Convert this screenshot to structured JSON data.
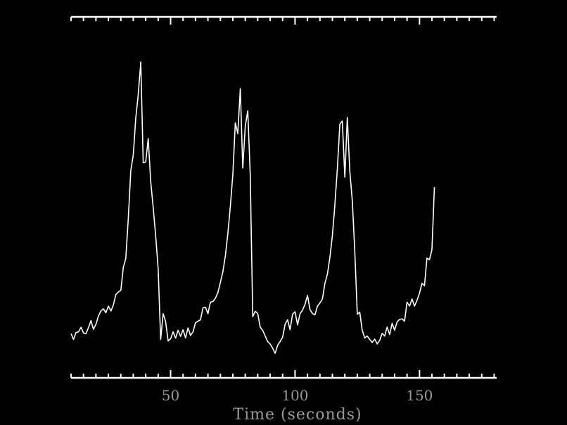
{
  "colors": {
    "background": "#000000",
    "line": "#ffffff",
    "axis": "#ffffff",
    "label": "#9a9a9a"
  },
  "chart_data": {
    "type": "line",
    "title": "",
    "xlabel": "Time (seconds)",
    "ylabel": "",
    "xlim": [
      10,
      181
    ],
    "ylim": [
      0,
      1
    ],
    "x_ticks": [
      50,
      100,
      150
    ],
    "x_tick_labels": [
      "50",
      "100",
      "150"
    ],
    "x_minor_step": 5,
    "grid": false,
    "legend": "none",
    "series": [
      {
        "color": "#ffffff",
        "points": [
          [
            10,
            0.104
          ],
          [
            11,
            0.085
          ],
          [
            12,
            0.108
          ],
          [
            13,
            0.11
          ],
          [
            14,
            0.125
          ],
          [
            15,
            0.106
          ],
          [
            16,
            0.104
          ],
          [
            17,
            0.124
          ],
          [
            18,
            0.147
          ],
          [
            19,
            0.118
          ],
          [
            20,
            0.135
          ],
          [
            21,
            0.162
          ],
          [
            22,
            0.179
          ],
          [
            23,
            0.186
          ],
          [
            24,
            0.173
          ],
          [
            25,
            0.195
          ],
          [
            26,
            0.179
          ],
          [
            27,
            0.198
          ],
          [
            28,
            0.233
          ],
          [
            29,
            0.241
          ],
          [
            30,
            0.247
          ],
          [
            31,
            0.323
          ],
          [
            32,
            0.352
          ],
          [
            33,
            0.485
          ],
          [
            34,
            0.641
          ],
          [
            35,
            0.694
          ],
          [
            36,
            0.815
          ],
          [
            37,
            0.892
          ],
          [
            38,
            1.0
          ],
          [
            39,
            0.667
          ],
          [
            40,
            0.67
          ],
          [
            41,
            0.747
          ],
          [
            42,
            0.607
          ],
          [
            43,
            0.519
          ],
          [
            44,
            0.427
          ],
          [
            45,
            0.319
          ],
          [
            46,
            0.085
          ],
          [
            47,
            0.17
          ],
          [
            48,
            0.144
          ],
          [
            49,
            0.08
          ],
          [
            50,
            0.087
          ],
          [
            51,
            0.11
          ],
          [
            52,
            0.089
          ],
          [
            53,
            0.115
          ],
          [
            54,
            0.095
          ],
          [
            55,
            0.117
          ],
          [
            56,
            0.09
          ],
          [
            57,
            0.123
          ],
          [
            58,
            0.098
          ],
          [
            59,
            0.11
          ],
          [
            60,
            0.14
          ],
          [
            61,
            0.145
          ],
          [
            62,
            0.15
          ],
          [
            63,
            0.189
          ],
          [
            64,
            0.191
          ],
          [
            65,
            0.17
          ],
          [
            66,
            0.208
          ],
          [
            67,
            0.21
          ],
          [
            68,
            0.221
          ],
          [
            69,
            0.239
          ],
          [
            70,
            0.273
          ],
          [
            71,
            0.308
          ],
          [
            72,
            0.361
          ],
          [
            73,
            0.434
          ],
          [
            74,
            0.522
          ],
          [
            75,
            0.629
          ],
          [
            76,
            0.799
          ],
          [
            77,
            0.763
          ],
          [
            78,
            0.912
          ],
          [
            79,
            0.65
          ],
          [
            80,
            0.789
          ],
          [
            81,
            0.839
          ],
          [
            82,
            0.629
          ],
          [
            83,
            0.16
          ],
          [
            84,
            0.178
          ],
          [
            85,
            0.17
          ],
          [
            86,
            0.125
          ],
          [
            87,
            0.115
          ],
          [
            88,
            0.096
          ],
          [
            89,
            0.078
          ],
          [
            90,
            0.07
          ],
          [
            91,
            0.056
          ],
          [
            92,
            0.039
          ],
          [
            93,
            0.066
          ],
          [
            94,
            0.078
          ],
          [
            95,
            0.092
          ],
          [
            96,
            0.135
          ],
          [
            97,
            0.15
          ],
          [
            98,
            0.117
          ],
          [
            99,
            0.168
          ],
          [
            100,
            0.176
          ],
          [
            101,
            0.133
          ],
          [
            102,
            0.17
          ],
          [
            103,
            0.181
          ],
          [
            104,
            0.201
          ],
          [
            105,
            0.23
          ],
          [
            106,
            0.184
          ],
          [
            107,
            0.17
          ],
          [
            108,
            0.166
          ],
          [
            109,
            0.195
          ],
          [
            110,
            0.205
          ],
          [
            111,
            0.218
          ],
          [
            112,
            0.27
          ],
          [
            113,
            0.3
          ],
          [
            114,
            0.356
          ],
          [
            115,
            0.428
          ],
          [
            116,
            0.528
          ],
          [
            117,
            0.65
          ],
          [
            118,
            0.795
          ],
          [
            119,
            0.805
          ],
          [
            120,
            0.62
          ],
          [
            121,
            0.817
          ],
          [
            122,
            0.638
          ],
          [
            123,
            0.543
          ],
          [
            124,
            0.378
          ],
          [
            125,
            0.168
          ],
          [
            126,
            0.175
          ],
          [
            127,
            0.115
          ],
          [
            128,
            0.09
          ],
          [
            129,
            0.096
          ],
          [
            130,
            0.085
          ],
          [
            131,
            0.075
          ],
          [
            132,
            0.086
          ],
          [
            133,
            0.07
          ],
          [
            134,
            0.082
          ],
          [
            135,
            0.105
          ],
          [
            136,
            0.096
          ],
          [
            137,
            0.126
          ],
          [
            138,
            0.101
          ],
          [
            139,
            0.138
          ],
          [
            140,
            0.115
          ],
          [
            141,
            0.143
          ],
          [
            142,
            0.151
          ],
          [
            143,
            0.153
          ],
          [
            144,
            0.145
          ],
          [
            145,
            0.208
          ],
          [
            146,
            0.195
          ],
          [
            147,
            0.218
          ],
          [
            148,
            0.195
          ],
          [
            149,
            0.214
          ],
          [
            150,
            0.237
          ],
          [
            151,
            0.27
          ],
          [
            152,
            0.262
          ],
          [
            153,
            0.353
          ],
          [
            154,
            0.348
          ],
          [
            155,
            0.381
          ],
          [
            156,
            0.587
          ]
        ]
      }
    ]
  }
}
